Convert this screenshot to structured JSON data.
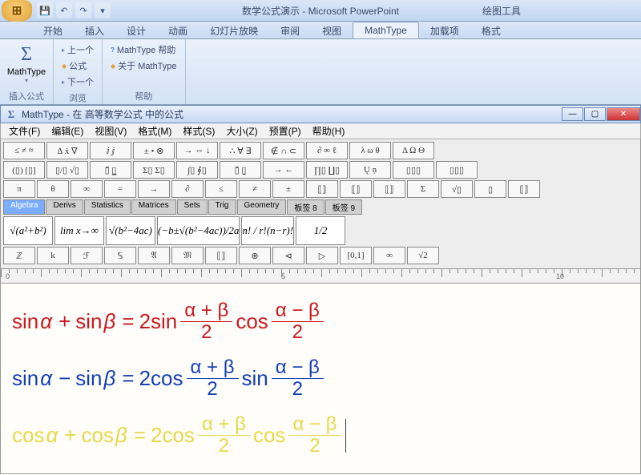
{
  "app": {
    "title_center": "数学公式演示 - Microsoft PowerPoint",
    "title_right": "绘图工具"
  },
  "ribbon_tabs": {
    "t0": "开始",
    "t1": "插入",
    "t2": "设计",
    "t3": "动画",
    "t4": "幻灯片放映",
    "t5": "审阅",
    "t6": "视图",
    "t7": "MathType",
    "t8": "加载项",
    "t9": "格式"
  },
  "ribbon": {
    "mathtype_btn": "MathType",
    "group1_label": "插入公式",
    "prev": "上一个",
    "formula": "公式",
    "next": "下一个",
    "group2_label": "浏览",
    "help": "MathType 帮助",
    "about": "关于 MathType",
    "group3_label": "帮助"
  },
  "mt": {
    "title": "MathType - 在 高等数学公式 中的公式",
    "menus": {
      "file": "文件(F)",
      "edit": "编辑(E)",
      "view": "视图(V)",
      "format": "格式(M)",
      "style": "样式(S)",
      "size": "大小(Z)",
      "pref": "预置(P)",
      "help": "帮助(H)"
    },
    "palette_row1": [
      "≤ ≠ ≈",
      "∆ ẋ ∇",
      "ⅈ ⅉ",
      "± • ⊗",
      "→ ⇔ ↓",
      "∴ ∀ ∃",
      "∉ ∩ ⊂",
      "∂ ∞ ℓ",
      "λ ω θ",
      "Δ Ω Θ"
    ],
    "palette_row2": [
      "(▯) [▯]",
      "▯/▯ √▯",
      "▯̄  ▯̲",
      "Σ▯ Σ▯",
      "∫▯ ∮▯",
      "▯̄ ▯̱",
      "→ ←",
      "∏▯ ∐▯",
      "Ų ṇ",
      "▯▯▯",
      "▯▯▯"
    ],
    "palette_row3": [
      "π",
      "θ",
      "∞",
      "=",
      "→",
      "∂",
      "≤",
      "≠",
      "±",
      "⟦⟧",
      "⟦⟧",
      "⟦⟧",
      "Σ",
      "√▯",
      "▯",
      "⟦⟧"
    ],
    "tabs": {
      "algebra": "Algebra",
      "derivs": "Derivs",
      "stats": "Statistics",
      "matrices": "Matrices",
      "sets": "Sets",
      "trig": "Trig",
      "geom": "Geometry",
      "t8": "板签 8",
      "t9": "板签 9"
    },
    "big_cells": [
      "√(a²+b²)",
      "lim x→∞",
      "√(b²−4ac)",
      "(−b±√(b²−4ac))/2a",
      "n! / r!(n−r)!",
      "1/2"
    ],
    "palette_row5": [
      "ℤ",
      "k",
      "ℱ",
      "𝕊",
      "𝔄",
      "𝔐",
      "⟦⟧",
      "⊕",
      "⊲",
      "▷",
      "[0,1]",
      "∞",
      "√2"
    ]
  },
  "ruler": {
    "mark0": "0",
    "mark1": "5",
    "mark2": "10"
  },
  "formulas": {
    "f1": {
      "lhs_fn1": "sin",
      "lhs_v1": "α",
      "lhs_op": "+",
      "lhs_fn2": "sin",
      "lhs_v2": "β",
      "eq": "=",
      "two": "2",
      "rhs_fn1": "sin",
      "frac1_num": "α + β",
      "frac1_den": "2",
      "rhs_fn2": "cos",
      "frac2_num": "α − β",
      "frac2_den": "2",
      "color": "#c8191f"
    },
    "f2": {
      "lhs_fn1": "sin",
      "lhs_v1": "α",
      "lhs_op": "−",
      "lhs_fn2": "sin",
      "lhs_v2": "β",
      "eq": "=",
      "two": "2",
      "rhs_fn1": "cos",
      "frac1_num": "α + β",
      "frac1_den": "2",
      "rhs_fn2": "sin",
      "frac2_num": "α − β",
      "frac2_den": "2",
      "color": "#143fb3"
    },
    "f3": {
      "lhs_fn1": "cos",
      "lhs_v1": "α",
      "lhs_op": "+",
      "lhs_fn2": "cos",
      "lhs_v2": "β",
      "eq": "=",
      "two": "2",
      "rhs_fn1": "cos",
      "frac1_num": "α + β",
      "frac1_den": "2",
      "rhs_fn2": "cos",
      "frac2_num": "α − β",
      "frac2_den": "2",
      "color": "#e8d848"
    }
  }
}
